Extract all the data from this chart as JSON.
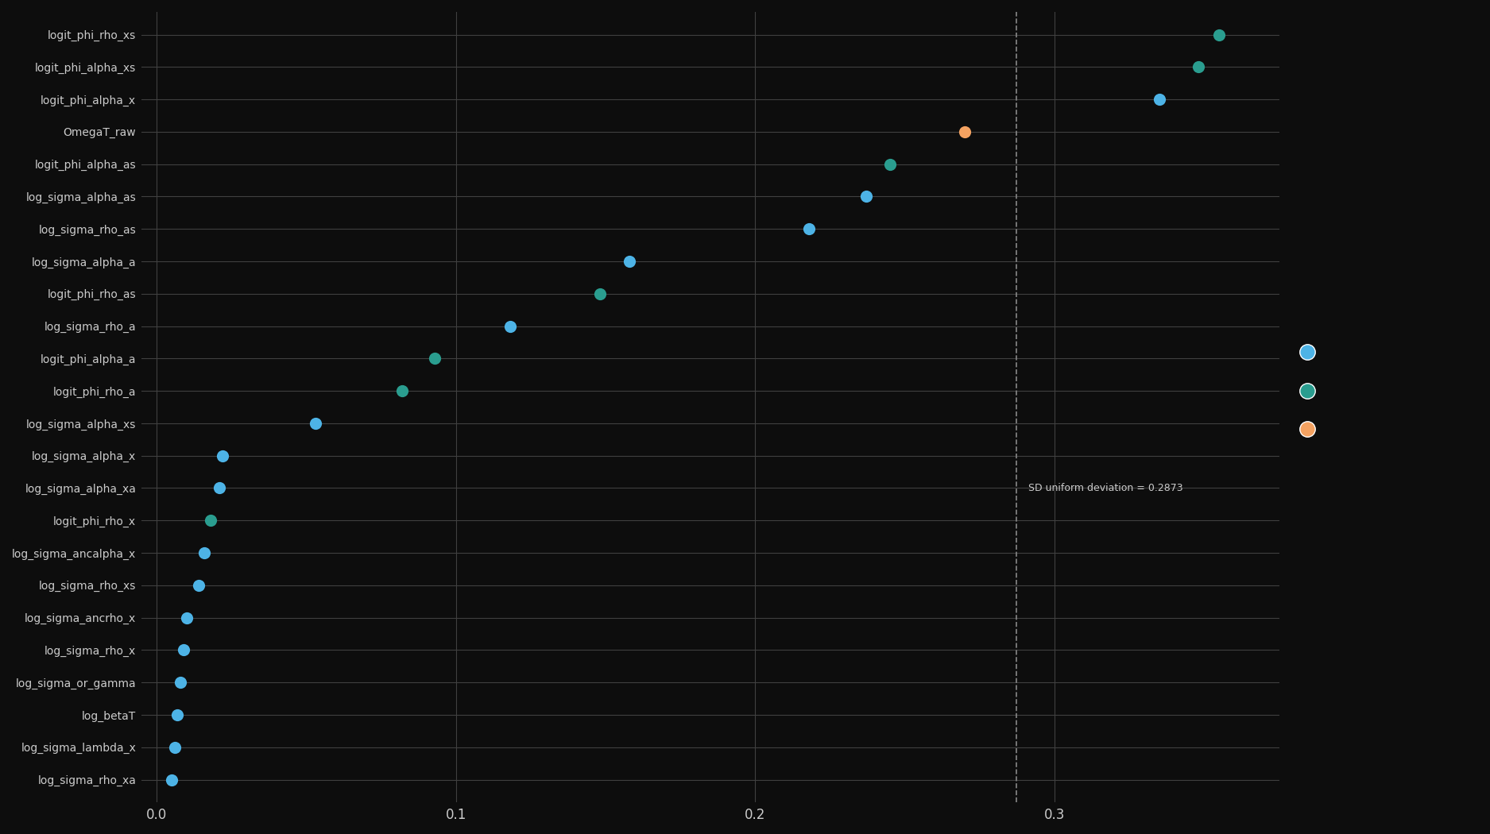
{
  "categories": [
    "logit_phi_rho_xs",
    "logit_phi_alpha_xs",
    "logit_phi_alpha_x",
    "OmegaT_raw",
    "logit_phi_alpha_as",
    "log_sigma_alpha_as",
    "log_sigma_rho_as",
    "log_sigma_alpha_a",
    "logit_phi_rho_as",
    "log_sigma_rho_a",
    "logit_phi_alpha_a",
    "logit_phi_rho_a",
    "log_sigma_alpha_xs",
    "log_sigma_alpha_x",
    "log_sigma_alpha_xa",
    "logit_phi_rho_x",
    "log_sigma_ancalpha_x",
    "log_sigma_rho_xs",
    "log_sigma_ancrho_x",
    "log_sigma_rho_x",
    "log_sigma_or_gamma",
    "log_betaT",
    "log_sigma_lambda_x",
    "log_sigma_rho_xa"
  ],
  "values": [
    0.355,
    0.348,
    0.335,
    0.27,
    0.245,
    0.237,
    0.218,
    0.158,
    0.148,
    0.118,
    0.093,
    0.082,
    0.053,
    0.022,
    0.021,
    0.018,
    0.016,
    0.014,
    0.01,
    0.009,
    0.008,
    0.007,
    0.006,
    0.005
  ],
  "colors": [
    "#2a9d8f",
    "#2a9d8f",
    "#4db3e6",
    "#f4a261",
    "#2a9d8f",
    "#4db3e6",
    "#4db3e6",
    "#4db3e6",
    "#2a9d8f",
    "#4db3e6",
    "#2a9d8f",
    "#2a9d8f",
    "#4db3e6",
    "#4db3e6",
    "#4db3e6",
    "#2a9d8f",
    "#4db3e6",
    "#4db3e6",
    "#4db3e6",
    "#4db3e6",
    "#4db3e6",
    "#4db3e6",
    "#4db3e6",
    "#4db3e6"
  ],
  "dashed_line_x": 0.2873,
  "dashed_line_label": "SD uniform deviation = 0.2873",
  "xlim": [
    -0.005,
    0.375
  ],
  "xticks": [
    0.0,
    0.1,
    0.2,
    0.3
  ],
  "background_color": "#0d0d0d",
  "grid_color": "#3a3a3a",
  "text_color": "#cccccc",
  "marker_size": 120,
  "legend_colors": [
    "#4db3e6",
    "#2a9d8f",
    "#f4a261"
  ]
}
